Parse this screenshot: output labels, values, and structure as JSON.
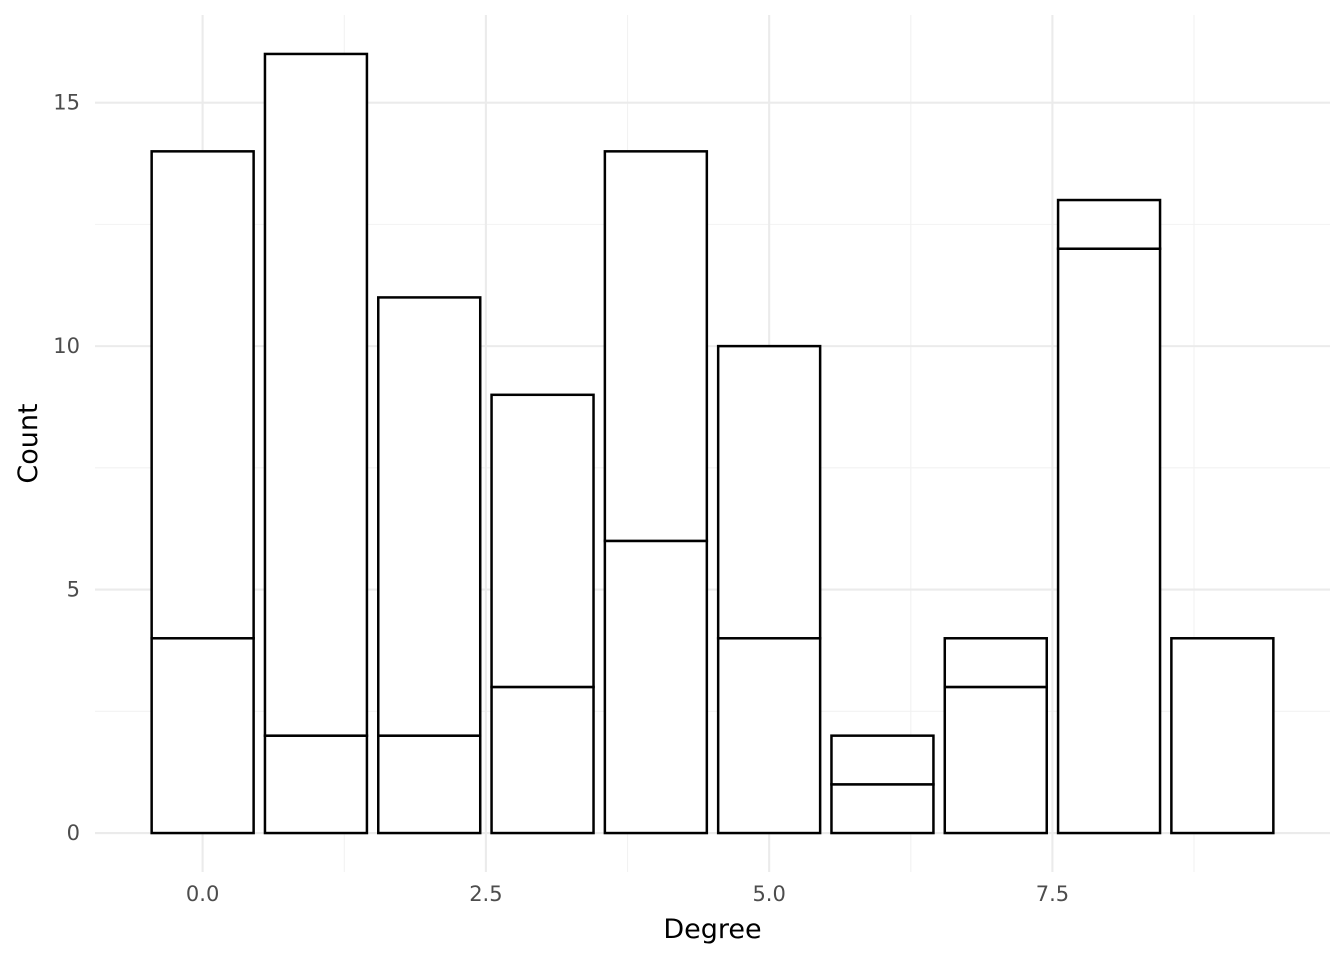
{
  "chart_data": {
    "type": "bar",
    "stacked": true,
    "xlabel": "Degree",
    "ylabel": "Count",
    "x_ticks": [
      "0.0",
      "2.5",
      "5.0",
      "7.5"
    ],
    "x_tick_values": [
      0,
      2.5,
      5,
      7.5
    ],
    "y_ticks": [
      "0",
      "5",
      "10",
      "15"
    ],
    "y_tick_values": [
      0,
      5,
      10,
      15
    ],
    "xlim": [
      -0.95,
      9.95
    ],
    "ylim": [
      -0.8,
      16.8
    ],
    "categories": [
      0,
      1,
      2,
      3,
      4,
      5,
      6,
      7,
      8,
      9
    ],
    "series": [
      {
        "values": [
          4,
          2,
          2,
          3,
          6,
          4,
          1,
          3,
          12,
          4
        ]
      },
      {
        "values": [
          10,
          14,
          9,
          6,
          8,
          6,
          1,
          1,
          1,
          0
        ]
      }
    ],
    "totals": [
      14,
      16,
      11,
      9,
      14,
      10,
      2,
      4,
      13,
      4
    ],
    "bar_fill": "#ffffff",
    "bar_stroke": "#000000",
    "grid": true,
    "legend": "none"
  }
}
